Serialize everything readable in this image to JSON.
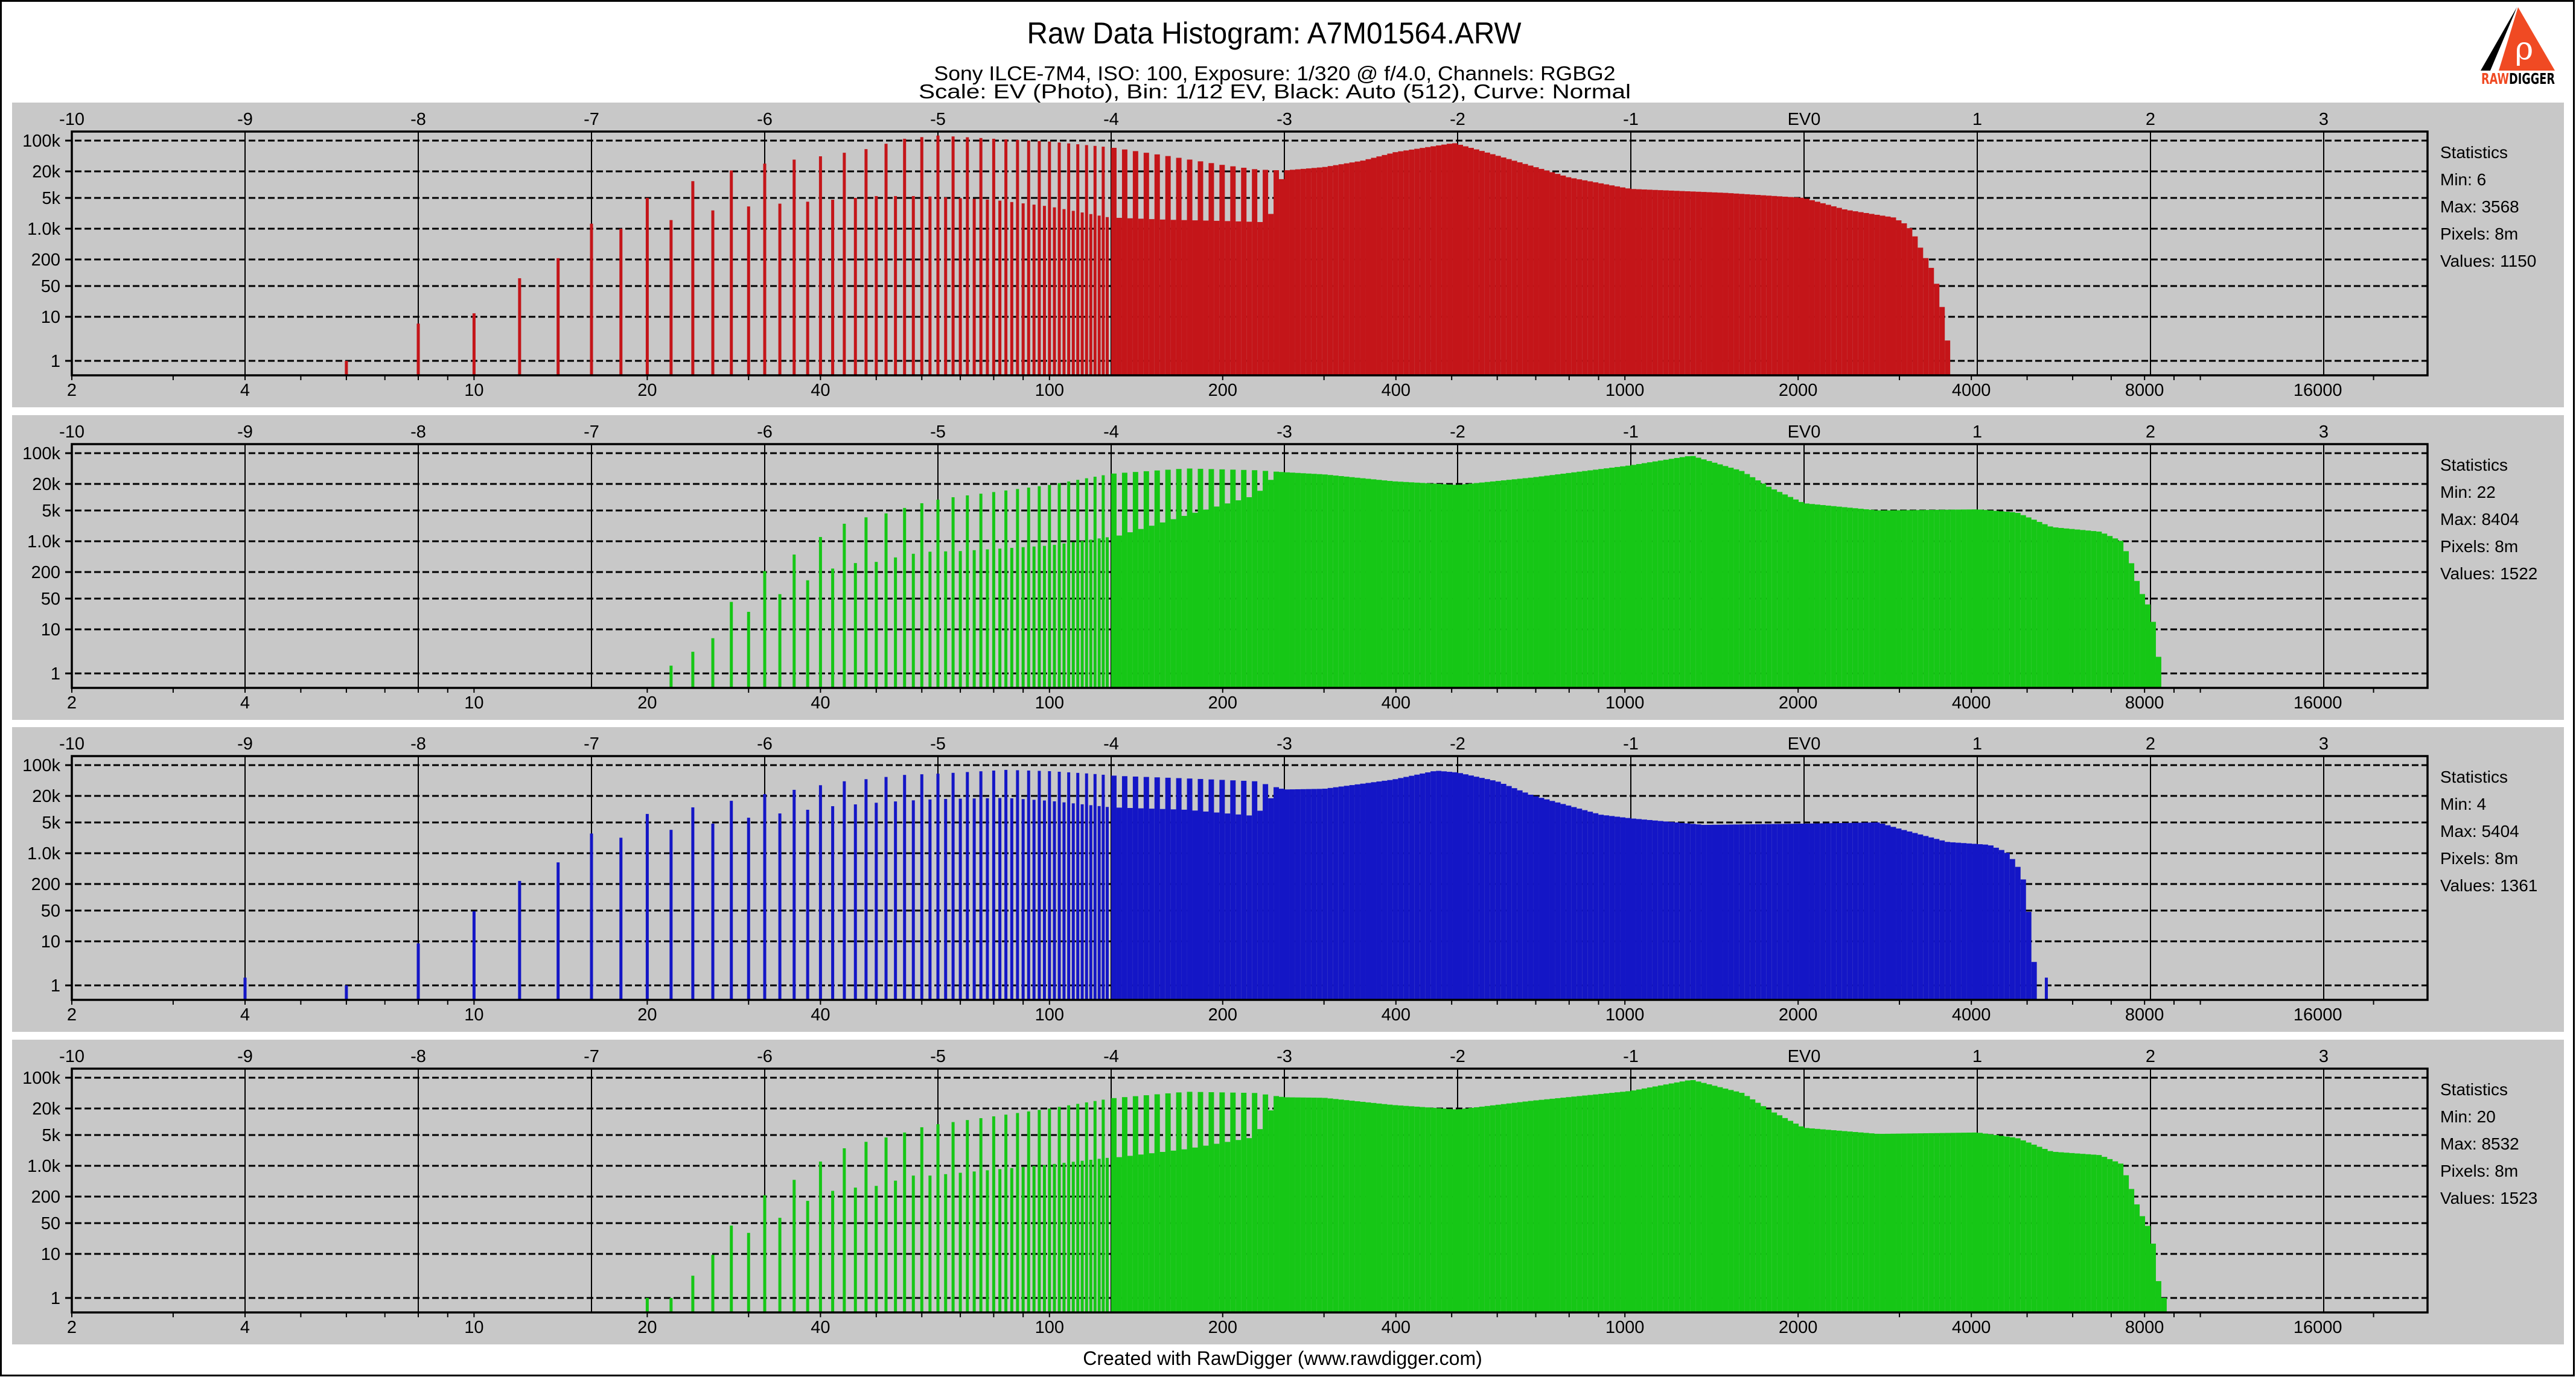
{
  "header": {
    "title": "Raw Data Histogram: A7M01564.ARW",
    "subtitle": "Sony ILCE-7M4, ISO: 100, Exposure: 1/320 @ f/4.0, Channels: RGBG2",
    "settings_line": "Scale: EV (Photo), Bin: 1/12 EV, Black: Auto (512), Curve: Normal"
  },
  "logo": {
    "text_left": "RAW",
    "text_right": "DIGGER",
    "accent": "#F04A23"
  },
  "footer": {
    "credit": "Created with RawDigger (www.rawdigger.com)"
  },
  "colors": {
    "panel_background": "#C8C8C8",
    "grid": "#000000"
  },
  "chart_data": {
    "type": "bar",
    "x_scale": "log2",
    "y_scale": "log10",
    "x_range": [
      2,
      24800
    ],
    "y_range": [
      0.5,
      160000
    ],
    "grid": true,
    "y_ticks": [
      {
        "value": 100000,
        "label": "100k"
      },
      {
        "value": 20000,
        "label": "20k"
      },
      {
        "value": 5000,
        "label": "5k"
      },
      {
        "value": 1000,
        "label": "1.0k"
      },
      {
        "value": 200,
        "label": "200"
      },
      {
        "value": 50,
        "label": "50"
      },
      {
        "value": 10,
        "label": "10"
      },
      {
        "value": 1,
        "label": "1"
      }
    ],
    "x_ticks_bottom": [
      {
        "value": 2,
        "label": "2"
      },
      {
        "value": 4,
        "label": "4"
      },
      {
        "value": 10,
        "label": "10"
      },
      {
        "value": 20,
        "label": "20"
      },
      {
        "value": 40,
        "label": "40"
      },
      {
        "value": 100,
        "label": "100"
      },
      {
        "value": 200,
        "label": "200"
      },
      {
        "value": 400,
        "label": "400"
      },
      {
        "value": 1000,
        "label": "1000"
      },
      {
        "value": 2000,
        "label": "2000"
      },
      {
        "value": 4000,
        "label": "4000"
      },
      {
        "value": 8000,
        "label": "8000"
      },
      {
        "value": 16000,
        "label": "16000"
      }
    ],
    "x_ticks_top": [
      {
        "value": -10,
        "label": "-10"
      },
      {
        "value": -9,
        "label": "-9"
      },
      {
        "value": -8,
        "label": "-8"
      },
      {
        "value": -7,
        "label": "-7"
      },
      {
        "value": -6,
        "label": "-6"
      },
      {
        "value": -5,
        "label": "-5"
      },
      {
        "value": -4,
        "label": "-4"
      },
      {
        "value": -3,
        "label": "-3"
      },
      {
        "value": -2,
        "label": "-2"
      },
      {
        "value": -1,
        "label": "-1"
      },
      {
        "value": 0,
        "label": "EV0"
      },
      {
        "value": 1,
        "label": "1"
      },
      {
        "value": 2,
        "label": "2"
      },
      {
        "value": 3,
        "label": "3"
      }
    ],
    "panels": [
      {
        "color": "#C41519",
        "stats": [
          "Statistics",
          "Min: 6",
          "Max: 3568",
          "Pixels: 8m",
          "Values: 1150"
        ],
        "upper": [
          [
            8,
            7
          ],
          [
            12,
            75
          ],
          [
            16,
            1300
          ],
          [
            20,
            5000
          ],
          [
            24,
            12000
          ],
          [
            28,
            21000
          ],
          [
            32,
            30000
          ],
          [
            36,
            37000
          ],
          [
            40,
            44000
          ],
          [
            44,
            53000
          ],
          [
            48,
            64000
          ],
          [
            56,
            110000
          ],
          [
            64,
            130000
          ],
          [
            80,
            110000
          ],
          [
            100,
            95000
          ],
          [
            128,
            70000
          ],
          [
            160,
            45000
          ],
          [
            200,
            28000
          ],
          [
            230,
            22000
          ],
          [
            256,
            21000
          ],
          [
            300,
            25000
          ],
          [
            350,
            35000
          ],
          [
            400,
            55000
          ],
          [
            505,
            88000
          ],
          [
            560,
            60000
          ],
          [
            700,
            25000
          ],
          [
            800,
            14600
          ],
          [
            1024,
            8000
          ],
          [
            1500,
            6500
          ],
          [
            2048,
            5000
          ],
          [
            2420,
            2700
          ],
          [
            2930,
            1800
          ],
          [
            3100,
            1200
          ],
          [
            3200,
            640
          ],
          [
            3300,
            270
          ],
          [
            3400,
            140
          ],
          [
            3500,
            46
          ],
          [
            3550,
            19
          ],
          [
            3600,
            8.6
          ],
          [
            3650,
            1.9
          ],
          [
            3700,
            1
          ]
        ],
        "lower": [
          [
            6,
            1
          ],
          [
            10,
            12
          ],
          [
            14,
            214
          ],
          [
            18,
            1000
          ],
          [
            22,
            1570
          ],
          [
            26,
            2600
          ],
          [
            30,
            3200
          ],
          [
            34,
            3700
          ],
          [
            38,
            4100
          ],
          [
            46,
            5000
          ],
          [
            50,
            5500
          ],
          [
            60,
            5500
          ],
          [
            80,
            4500
          ],
          [
            100,
            3200
          ],
          [
            127,
            1800
          ],
          [
            160,
            1600
          ],
          [
            200,
            1500
          ],
          [
            240,
            1400
          ],
          [
            256,
            21000
          ]
        ],
        "isolated": []
      },
      {
        "color": "#16C716",
        "stats": [
          "Statistics",
          "Min: 22",
          "Max: 8404",
          "Pixels: 8m",
          "Values: 1522"
        ],
        "upper": [
          [
            24,
            3.1
          ],
          [
            28,
            42
          ],
          [
            32,
            210
          ],
          [
            36,
            500
          ],
          [
            40,
            1250
          ],
          [
            44,
            2500
          ],
          [
            48,
            3500
          ],
          [
            52,
            4300
          ],
          [
            56,
            5700
          ],
          [
            60,
            7300
          ],
          [
            64,
            8800
          ],
          [
            68,
            10000
          ],
          [
            100,
            19000
          ],
          [
            128,
            34000
          ],
          [
            131,
            35000
          ],
          [
            173,
            45000
          ],
          [
            228,
            41000
          ],
          [
            256,
            37000
          ],
          [
            300,
            33000
          ],
          [
            396,
            23000
          ],
          [
            512,
            19000
          ],
          [
            690,
            28000
          ],
          [
            1024,
            53000
          ],
          [
            1306,
            88000
          ],
          [
            1600,
            39000
          ],
          [
            1790,
            16500
          ],
          [
            2048,
            7300
          ],
          [
            2760,
            5000
          ],
          [
            4100,
            5300
          ],
          [
            4800,
            4500
          ],
          [
            5520,
            2100
          ],
          [
            6700,
            1650
          ],
          [
            7300,
            1000
          ],
          [
            7600,
            310
          ],
          [
            7820,
            90
          ],
          [
            8230,
            25
          ],
          [
            8480,
            2
          ],
          [
            8600,
            1
          ]
        ],
        "lower": [
          [
            22,
            1.5
          ],
          [
            26,
            6.3
          ],
          [
            30,
            25
          ],
          [
            34,
            63
          ],
          [
            38,
            130
          ],
          [
            42,
            240
          ],
          [
            46,
            320
          ],
          [
            50,
            340
          ],
          [
            54,
            430
          ],
          [
            58,
            520
          ],
          [
            62,
            580
          ],
          [
            70,
            600
          ],
          [
            100,
            800
          ],
          [
            127,
            1250
          ],
          [
            131,
            1300
          ],
          [
            173,
            3900
          ],
          [
            228,
            11000
          ],
          [
            250,
            37000
          ]
        ],
        "isolated": []
      },
      {
        "color": "#1416C6",
        "stats": [
          "Statistics",
          "Min: 4",
          "Max: 5404",
          "Pixels: 8m",
          "Values: 1361"
        ],
        "upper": [
          [
            4,
            1.5
          ],
          [
            8,
            9
          ],
          [
            12,
            235
          ],
          [
            16,
            2800
          ],
          [
            20,
            7800
          ],
          [
            24,
            11000
          ],
          [
            28,
            15500
          ],
          [
            32,
            22000
          ],
          [
            36,
            27500
          ],
          [
            40,
            35000
          ],
          [
            44,
            43000
          ],
          [
            48,
            48000
          ],
          [
            56,
            60000
          ],
          [
            64,
            64000
          ],
          [
            84,
            78000
          ],
          [
            100,
            73000
          ],
          [
            118,
            64000
          ],
          [
            131,
            57000
          ],
          [
            173,
            50000
          ],
          [
            228,
            43000
          ],
          [
            256,
            28000
          ],
          [
            300,
            29000
          ],
          [
            396,
            47000
          ],
          [
            470,
            75000
          ],
          [
            512,
            68000
          ],
          [
            600,
            43000
          ],
          [
            688,
            21000
          ],
          [
            908,
            7500
          ],
          [
            1024,
            6200
          ],
          [
            1372,
            4400
          ],
          [
            2048,
            4700
          ],
          [
            2760,
            5000
          ],
          [
            3000,
            3600
          ],
          [
            3640,
            1800
          ],
          [
            4300,
            1550
          ],
          [
            4600,
            1070
          ],
          [
            4760,
            640
          ],
          [
            4900,
            340
          ],
          [
            4980,
            130
          ],
          [
            5060,
            27
          ],
          [
            5140,
            3.4
          ],
          [
            5250,
            3.5
          ]
        ],
        "lower": [
          [
            6,
            1
          ],
          [
            10,
            48
          ],
          [
            14,
            620
          ],
          [
            18,
            2250
          ],
          [
            22,
            3400
          ],
          [
            26,
            4700
          ],
          [
            30,
            6400
          ],
          [
            34,
            8000
          ],
          [
            38,
            9700
          ],
          [
            42,
            11700
          ],
          [
            50,
            14000
          ],
          [
            56,
            15500
          ],
          [
            64,
            17000
          ],
          [
            84,
            18000
          ],
          [
            100,
            15500
          ],
          [
            128,
            11000
          ],
          [
            173,
            9700
          ],
          [
            228,
            7000
          ],
          [
            250,
            28000
          ]
        ],
        "isolated": [
          [
            5400,
            1.5
          ]
        ]
      },
      {
        "color": "#16C716",
        "stats": [
          "Statistics",
          "Min: 20",
          "Max: 8532",
          "Pixels: 8m",
          "Values: 1523"
        ],
        "upper": [
          [
            20,
            1
          ],
          [
            24,
            3.2
          ],
          [
            28,
            44
          ],
          [
            32,
            215
          ],
          [
            36,
            480
          ],
          [
            40,
            1250
          ],
          [
            44,
            2500
          ],
          [
            48,
            3500
          ],
          [
            52,
            4400
          ],
          [
            56,
            5700
          ],
          [
            60,
            7500
          ],
          [
            64,
            8800
          ],
          [
            100,
            20000
          ],
          [
            128,
            34000
          ],
          [
            131,
            35000
          ],
          [
            173,
            48000
          ],
          [
            228,
            45000
          ],
          [
            256,
            36000
          ],
          [
            300,
            35000
          ],
          [
            396,
            24000
          ],
          [
            512,
            19000
          ],
          [
            690,
            30000
          ],
          [
            1024,
            50000
          ],
          [
            1306,
            90000
          ],
          [
            1600,
            45000
          ],
          [
            1790,
            18000
          ],
          [
            2048,
            7300
          ],
          [
            2760,
            5300
          ],
          [
            4100,
            5700
          ],
          [
            4800,
            4300
          ],
          [
            5520,
            2100
          ],
          [
            6700,
            1750
          ],
          [
            7300,
            1100
          ],
          [
            7600,
            290
          ],
          [
            7820,
            100
          ],
          [
            8230,
            30
          ],
          [
            8480,
            2
          ],
          [
            8650,
            1
          ]
        ],
        "lower": [
          [
            22,
            1
          ],
          [
            26,
            9.5
          ],
          [
            30,
            30
          ],
          [
            34,
            66
          ],
          [
            38,
            160
          ],
          [
            42,
            270
          ],
          [
            46,
            320
          ],
          [
            50,
            350
          ],
          [
            54,
            460
          ],
          [
            58,
            600
          ],
          [
            62,
            600
          ],
          [
            100,
            1070
          ],
          [
            128,
            1550
          ],
          [
            131,
            1550
          ],
          [
            173,
            2400
          ],
          [
            228,
            4500
          ],
          [
            250,
            36000
          ]
        ],
        "isolated": []
      }
    ]
  }
}
